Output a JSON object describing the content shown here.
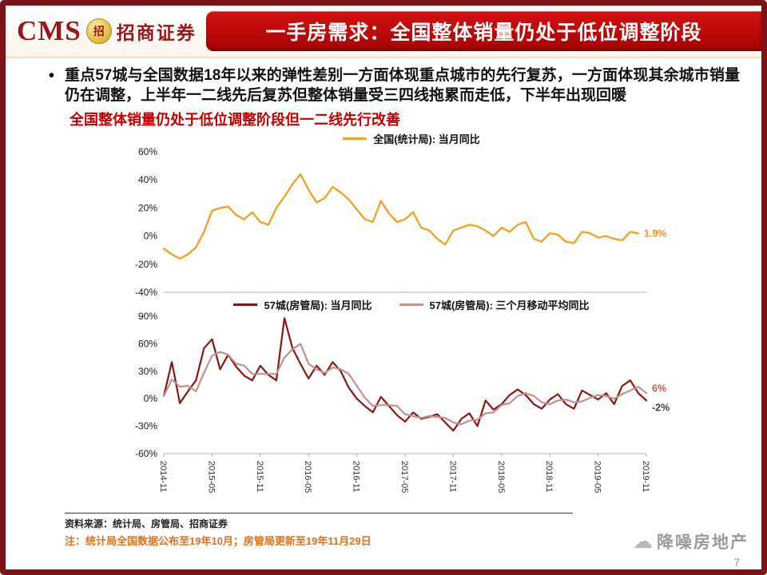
{
  "header": {
    "logo": {
      "cms_text": "CMS",
      "emblem_char": "招",
      "brand": "招商证券"
    },
    "title": "一手房需求：全国整体销量仍处于低位调整阶段"
  },
  "body": {
    "bullet_text": "重点57城与全国数据18年以来的弹性差别一方面体现重点城市的先行复苏，一方面体现其余城市销量仍在调整，上半年一二线先后复苏但整体销量受三四线拖累而走低，下半年出现回暖",
    "highlight": "全国整体销量仍处于低位调整阶段但一二线先行改善"
  },
  "chart_data": [
    {
      "type": "line",
      "title": "全国(统计局)当月同比",
      "x_slots": 61,
      "x_range": [
        "2014-11",
        "2019-10"
      ],
      "ylim": [
        -40,
        60
      ],
      "yticks": [
        60,
        40,
        20,
        0,
        -20,
        -40
      ],
      "grid": false,
      "legend_position": "top-center",
      "series": [
        {
          "name": "全国(统计局): 当月同比",
          "color": "#EFA32B",
          "width": 2.4,
          "values": [
            -9,
            -13,
            -16,
            -13,
            -8,
            3,
            18,
            20,
            21,
            15,
            12,
            17,
            10,
            8,
            20,
            28,
            37,
            44,
            33,
            24,
            27,
            35,
            31,
            26,
            19,
            12,
            10,
            25,
            16,
            10,
            12,
            17,
            6,
            4,
            -2,
            -6,
            4,
            6,
            8,
            7,
            4,
            0,
            6,
            3,
            8,
            10,
            -2,
            -4,
            2,
            1,
            -4,
            -5,
            3,
            2,
            -1,
            0,
            -2,
            -3,
            3,
            1.9
          ]
        }
      ],
      "annotations": [
        {
          "text": "1.9%",
          "value": 1.9,
          "at_index": 59,
          "color": "#E8951C",
          "dy": 4
        }
      ]
    },
    {
      "type": "line",
      "title": "57城(房管局)当月同比与三个月移动平均同比",
      "x_slots": 61,
      "x_range": [
        "2014-11",
        "2019-11"
      ],
      "ylim": [
        -60,
        90
      ],
      "yticks": [
        90,
        60,
        30,
        0,
        -30,
        -60
      ],
      "grid": false,
      "legend_position": "top-center",
      "xticks": {
        "indices": [
          0,
          6,
          12,
          18,
          24,
          30,
          36,
          42,
          48,
          54,
          60
        ],
        "labels": [
          "2014-11",
          "2015-05",
          "2015-11",
          "2016-05",
          "2016-11",
          "2017-05",
          "2017-11",
          "2018-05",
          "2018-11",
          "2019-05",
          "2019-11"
        ]
      },
      "series": [
        {
          "name": "57城(房管局): 当月同比",
          "color": "#8A1711",
          "width": 2.2,
          "values": [
            3,
            40,
            -5,
            8,
            20,
            55,
            65,
            32,
            48,
            35,
            25,
            20,
            36,
            26,
            20,
            88,
            55,
            38,
            22,
            36,
            26,
            40,
            30,
            12,
            0,
            -8,
            -15,
            2,
            -8,
            -18,
            -25,
            -15,
            -22,
            -20,
            -17,
            -26,
            -35,
            -22,
            -16,
            -30,
            -2,
            -12,
            -6,
            4,
            10,
            4,
            -6,
            -11,
            -1,
            5,
            -6,
            -11,
            9,
            4,
            -1,
            6,
            -6,
            14,
            20,
            6,
            -2
          ]
        },
        {
          "name": "57城(房管局): 三个月移动平均同比",
          "color": "#C2908E",
          "width": 2.2,
          "values": [
            3,
            21,
            13,
            14,
            8,
            28,
            47,
            51,
            48,
            38,
            36,
            27,
            27,
            27,
            27,
            45,
            54,
            60,
            38,
            32,
            28,
            34,
            32,
            27,
            14,
            1,
            -8,
            -7,
            -7,
            -8,
            -17,
            -19,
            -21,
            -19,
            -20,
            -21,
            -26,
            -28,
            -24,
            -23,
            -16,
            -15,
            -7,
            -5,
            3,
            6,
            3,
            -4,
            -6,
            -2,
            -1,
            -4,
            -3,
            1,
            4,
            3,
            0,
            5,
            9,
            13,
            6
          ]
        }
      ],
      "annotations": [
        {
          "text": "6%",
          "value": 6,
          "at_index": 60,
          "color": "#C25B4E",
          "dy": -2
        },
        {
          "text": "-2%",
          "value": -2,
          "at_index": 60,
          "color": "#3F3F3F",
          "dy": 13
        }
      ]
    }
  ],
  "footer": {
    "source": "资料来源：统计局、房管局、招商证券",
    "note": "注：统计局全国数据公布至19年10月；房管局更新至19年11月29日",
    "watermark": "降噪房地产",
    "page": "7"
  },
  "colors": {
    "frame": "#7C1417",
    "banner_top": "#D41010",
    "banner_bottom": "#A30404",
    "logo_red": "#9C1519",
    "highlight": "#C00000",
    "note_orange": "#E2711D",
    "watermark_gray": "#9B9B9B",
    "axis_gray": "#B3B3B3"
  }
}
